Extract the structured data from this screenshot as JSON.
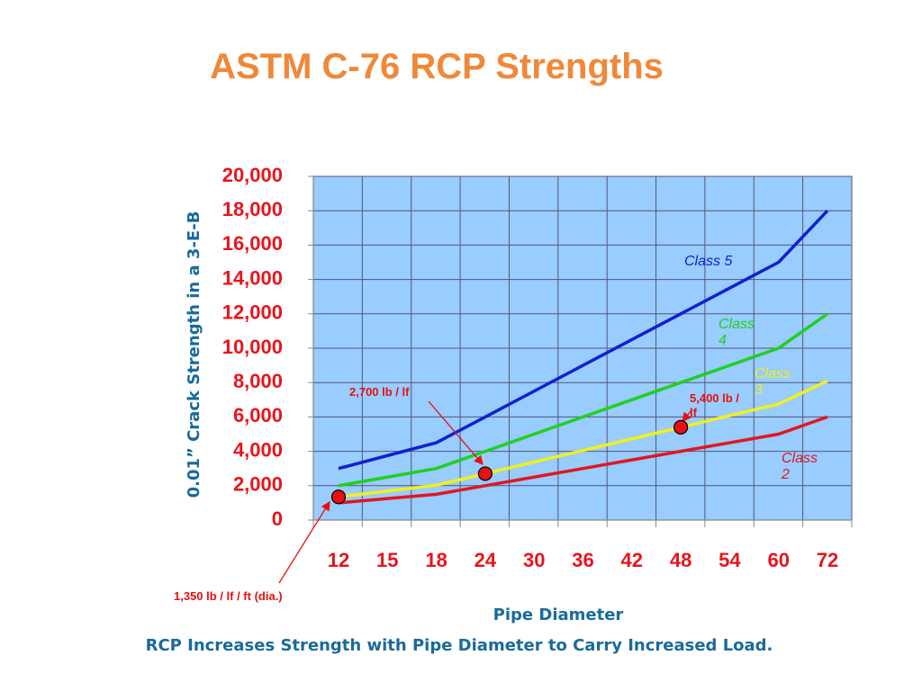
{
  "title": "ASTM C-76 RCP Strengths",
  "caption": "RCP Increases Strength with Pipe Diameter to Carry Increased Load.",
  "colors": {
    "title": "#f0883a",
    "axis_title": "#1a6a9a",
    "tick_label": "#e8141c",
    "plot_bg": "#99ccff",
    "grid": "#555577",
    "class5": "#1020d0",
    "class4": "#20d020",
    "class3": "#f0f020",
    "class2": "#e01820",
    "marker": "#e81010"
  },
  "chart_data": {
    "type": "line",
    "title": "ASTM C-76 RCP Strengths",
    "xlabel": "Pipe Diameter",
    "ylabel": "0.01” Crack Strength in a 3-E-B",
    "categories": [
      "12",
      "15",
      "18",
      "24",
      "30",
      "36",
      "42",
      "48",
      "54",
      "60",
      "72"
    ],
    "y_tick_labels": [
      "0",
      "2,000",
      "4,000",
      "6,000",
      "8,000",
      "10,000",
      "12,000",
      "14,000",
      "16,000",
      "18,000",
      "20,000"
    ],
    "ylim": [
      0,
      20000
    ],
    "grid": true,
    "series": [
      {
        "name": "Class 5",
        "label_lines": [
          "Class 5"
        ],
        "color_key": "class5",
        "values": [
          3000,
          3750,
          4500,
          6000,
          7500,
          9000,
          10500,
          12000,
          13500,
          15000,
          18000
        ]
      },
      {
        "name": "Class 4",
        "label_lines": [
          "Class",
          "4"
        ],
        "color_key": "class4",
        "values": [
          2000,
          2500,
          3000,
          4000,
          5000,
          6000,
          7000,
          8000,
          9000,
          10000,
          12000
        ]
      },
      {
        "name": "Class 3",
        "label_lines": [
          "Class",
          "3"
        ],
        "color_key": "class3",
        "values": [
          1350,
          1690,
          2025,
          2700,
          3375,
          4050,
          4725,
          5400,
          6075,
          6750,
          8100
        ]
      },
      {
        "name": "Class 2",
        "label_lines": [
          "Class",
          "2"
        ],
        "color_key": "class2",
        "values": [
          1000,
          1250,
          1500,
          2000,
          2500,
          3000,
          3500,
          4000,
          4500,
          5000,
          6000
        ]
      }
    ],
    "annotations": [
      {
        "text": "1,350 lb / lf / ft (dia.)",
        "point": {
          "x": "12",
          "y": 1350
        }
      },
      {
        "text": "2,700 lb / lf",
        "point": {
          "x": "24",
          "y": 2700
        }
      },
      {
        "text_lines": [
          "5,400 lb /",
          "lf"
        ],
        "point": {
          "x": "48",
          "y": 5400
        }
      }
    ]
  }
}
